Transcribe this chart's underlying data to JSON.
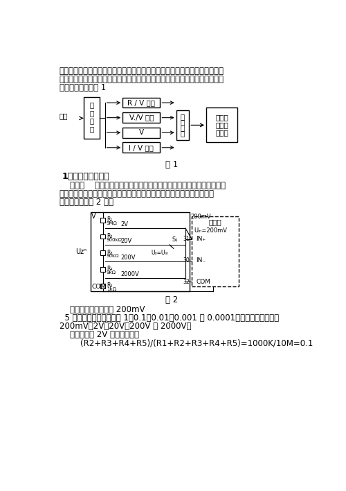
{
  "bg_color": "#ffffff",
  "text_color": "#000000",
  "para1": "波和前置放大，然后万用表根据用户选择的相应档位进行相应的信号转换、再",
  "para2": "将模拟信号转换成数字信号，最后将数值经显示驱动电路输出在显示屏幕上。",
  "para3": "整体结构框图如图 1",
  "fig1_caption": "图 1",
  "section_title": "1、直流电压的测量",
  "para4_1": "    原理：    数字电压表的作用就是测量直流电压，但是它的量程有限，为",
  "para4_2": "了扩大量程可以在数字电压表表头前面加一个分压电路，这样就可以满足",
  "para4_3": "要求，电路如图 2 所示",
  "fig2_caption": "图 2",
  "para5": "    数字电压表的量程为 200mV",
  "para6": "  5 档量程的分压比分别为 1、0.1、0.01、0.001 和 0.0001，对应的量程分别为",
  "para7": "200mV、2V、20V、200V 和 2000V。",
  "para8": "    例如：其中 2V 档的分压比为",
  "para9": "        (R2+R3+R4+R5)/(R1+R2+R3+R4+R5)=1000K/10M=0.1",
  "conv_labels": [
    "R / V 转换",
    "V./V 转换",
    "V",
    "I / V 转换"
  ],
  "func_chars": [
    "功",
    "能",
    "选",
    "择"
  ],
  "sel_chars": [
    "量",
    "程",
    "选",
    "择"
  ],
  "final_lines": [
    "基本量",
    "程数字",
    "电压表"
  ],
  "res_names": [
    "R₁",
    "R₂",
    "R₃",
    "R₄",
    "R₅"
  ],
  "res_vals": [
    "9MΩ",
    "900kΩ",
    "90kΩ",
    "9kΩ",
    "1kΩ"
  ],
  "tap_labels": [
    "2V",
    "20V",
    "200V",
    "2000V"
  ],
  "dash_lines": [
    "基本表",
    "Uₘ=200mV",
    "IN₊",
    "IN₋",
    "COM"
  ],
  "pin_nums": [
    "31",
    "30",
    "32"
  ]
}
